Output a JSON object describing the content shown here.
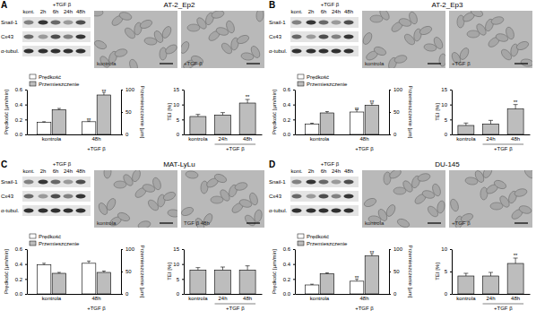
{
  "panels": [
    {
      "label": "A",
      "title": "AT-2_Ep2",
      "images": [
        "kontrola",
        "+TGF β"
      ]
    },
    {
      "label": "B",
      "title": "AT-2_Ep3",
      "images": [
        "kontrola",
        "+TGF β"
      ]
    },
    {
      "label": "C",
      "title": "MAT-LyLu",
      "images": [
        "kontrola",
        "TGF β 48h"
      ]
    },
    {
      "label": "D",
      "title": "DU-145",
      "images": [
        "kontrola",
        "+TGF β"
      ]
    }
  ],
  "blot": {
    "control": "kont.",
    "treatment": "+TGF β",
    "times": [
      "2h",
      "6h",
      "24h",
      "48h"
    ],
    "proteins": [
      "Snail-1",
      "Cx43",
      "α-tubul."
    ]
  },
  "chart_data": [
    {
      "type": "bar",
      "categories": [
        "kontrola",
        "48h"
      ],
      "category_group": {
        "label": "+TGF β",
        "categories": [
          1
        ]
      },
      "ylabel": "Prędkość [µm/min]",
      "y2label": "Przemieszczenie [µm]",
      "legend": "top",
      "ylim": [
        0,
        0.6
      ],
      "yticks": [
        {
          "value": 0,
          "label": "0.0"
        },
        {
          "value": 0.2,
          "label": "0.2"
        },
        {
          "value": 0.4,
          "label": "0.4"
        },
        {
          "value": 0.6,
          "label": "0.6"
        }
      ],
      "y2lim": [
        0,
        100
      ],
      "y2ticks": [
        0,
        50,
        100
      ],
      "series": [
        {
          "name": "Prędkość",
          "color": "#ffffff",
          "values": [
            0.16,
            0.17
          ],
          "errors": [
            0.01,
            0.01
          ]
        },
        {
          "name": "Przemieszczenie",
          "color": "#bdbdbd",
          "axis": "y2",
          "values": [
            55,
            88
          ],
          "errors": [
            3,
            6
          ]
        }
      ],
      "annotations": [
        {
          "series": 0,
          "category": 1,
          "text": "**"
        },
        {
          "series": 1,
          "category": 1,
          "text": "**"
        }
      ]
    },
    {
      "type": "bar",
      "categories": [
        "kontrola",
        "24h",
        "48h"
      ],
      "category_group": {
        "label": "+TGF β",
        "categories": [
          1,
          2
        ]
      },
      "ylabel": "TEI [%]",
      "ylim": [
        0,
        15
      ],
      "yticks": [
        0,
        5,
        10,
        15
      ],
      "color": "#bdbdbd",
      "values": [
        6,
        6.5,
        10.5
      ],
      "errors": [
        0.7,
        0.8,
        1.2
      ],
      "annotations": [
        {
          "category": 2,
          "text": "**"
        }
      ]
    },
    {
      "type": "bar",
      "categories": [
        "kontrola",
        "48h"
      ],
      "category_group": {
        "label": "+TGF β",
        "categories": [
          1
        ]
      },
      "ylabel": "Prędkość [µm/min]",
      "y2label": "Przemieszczenie [µm]",
      "legend": "top",
      "ylim": [
        0,
        0.6
      ],
      "yticks": [
        {
          "value": 0,
          "label": "0.0"
        },
        {
          "value": 0.2,
          "label": "0.2"
        },
        {
          "value": 0.4,
          "label": "0.4"
        },
        {
          "value": 0.6,
          "label": "0.6"
        }
      ],
      "y2lim": [
        0,
        100
      ],
      "y2ticks": [
        0,
        50,
        100
      ],
      "series": [
        {
          "name": "Prędkość",
          "color": "#ffffff",
          "values": [
            0.14,
            0.3
          ],
          "errors": [
            0.01,
            0.03
          ]
        },
        {
          "name": "Przemieszczenie",
          "color": "#bdbdbd",
          "axis": "y2",
          "values": [
            48,
            65
          ],
          "errors": [
            3,
            5
          ]
        }
      ],
      "annotations": [
        {
          "series": 0,
          "category": 1,
          "text": "**"
        },
        {
          "series": 1,
          "category": 1,
          "text": "**"
        }
      ]
    },
    {
      "type": "bar",
      "categories": [
        "kontrola",
        "24h",
        "48h"
      ],
      "category_group": {
        "label": "+TGF β",
        "categories": [
          1,
          2
        ]
      },
      "ylabel": "TEI [%]",
      "ylim": [
        0,
        15
      ],
      "yticks": [
        0,
        5,
        10,
        15
      ],
      "color": "#bdbdbd",
      "values": [
        3,
        3.5,
        8.5
      ],
      "errors": [
        0.8,
        1.2,
        1.5
      ],
      "annotations": [
        {
          "category": 2,
          "text": "**"
        }
      ]
    },
    {
      "type": "bar",
      "categories": [
        "kontrola",
        "48h"
      ],
      "category_group": {
        "label": "+TGF β",
        "categories": [
          1
        ]
      },
      "ylabel": "Prędkość [µm/min]",
      "y2label": "Przemieszczenie [µm]",
      "legend": "top",
      "ylim": [
        0,
        0.6
      ],
      "yticks": [
        {
          "value": 0,
          "label": "0.0"
        },
        {
          "value": 0.2,
          "label": "0.2"
        },
        {
          "value": 0.4,
          "label": "0.4"
        },
        {
          "value": 0.6,
          "label": "0.6"
        }
      ],
      "y2lim": [
        0,
        100
      ],
      "y2ticks": [
        0,
        50,
        100
      ],
      "series": [
        {
          "name": "Prędkość",
          "color": "#ffffff",
          "values": [
            0.39,
            0.41
          ],
          "errors": [
            0.02,
            0.03
          ]
        },
        {
          "name": "Przemieszczenie",
          "color": "#bdbdbd",
          "axis": "y2",
          "values": [
            46,
            48
          ],
          "errors": [
            2,
            3
          ]
        }
      ],
      "annotations": []
    },
    {
      "type": "bar",
      "categories": [
        "kontrola",
        "24h",
        "48h"
      ],
      "category_group": {
        "label": "+TGF β",
        "categories": [
          1,
          2
        ]
      },
      "ylabel": "TEI [%]",
      "ylim": [
        0,
        15
      ],
      "yticks": [
        0,
        5,
        10,
        15
      ],
      "color": "#bdbdbd",
      "values": [
        8,
        8,
        8
      ],
      "errors": [
        0.8,
        1,
        1.4
      ],
      "annotations": []
    },
    {
      "type": "bar",
      "categories": [
        "kontrola",
        "48h"
      ],
      "category_group": {
        "label": "+TGF β",
        "categories": [
          1
        ]
      },
      "ylabel": "Prędkość [µm/min]",
      "y2label": "Przemieszczenie [µm]",
      "legend": "top",
      "ylim": [
        0,
        0.6
      ],
      "yticks": [
        {
          "value": 0,
          "label": "0.0"
        },
        {
          "value": 0.2,
          "label": "0.2"
        },
        {
          "value": 0.4,
          "label": "0.4"
        },
        {
          "value": 0.6,
          "label": "0.6"
        }
      ],
      "y2lim": [
        0,
        100
      ],
      "y2ticks": [
        0,
        50,
        100
      ],
      "series": [
        {
          "name": "Prędkość",
          "color": "#ffffff",
          "values": [
            0.12,
            0.17
          ],
          "errors": [
            0.01,
            0.03
          ]
        },
        {
          "name": "Przemieszczenie",
          "color": "#bdbdbd",
          "axis": "y2",
          "values": [
            45,
            85
          ],
          "errors": [
            2,
            5
          ]
        }
      ],
      "annotations": [
        {
          "series": 0,
          "category": 1,
          "text": "**"
        },
        {
          "series": 1,
          "category": 1,
          "text": "**"
        }
      ]
    },
    {
      "type": "bar",
      "categories": [
        "kontrola",
        "24h",
        "48h"
      ],
      "category_group": {
        "label": "+TGF β",
        "categories": [
          1,
          2
        ]
      },
      "ylabel": "TEI [%]",
      "ylim": [
        0,
        10
      ],
      "yticks": [
        0,
        5,
        10
      ],
      "color": "#bdbdbd",
      "values": [
        4,
        4,
        6.8
      ],
      "errors": [
        0.6,
        0.8,
        1.2
      ],
      "annotations": [
        {
          "category": 2,
          "text": "**"
        }
      ]
    }
  ]
}
